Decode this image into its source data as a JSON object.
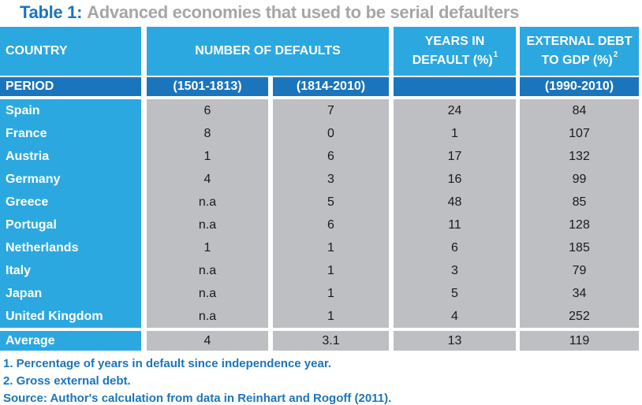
{
  "title": {
    "prefix": "Table 1:",
    "text": "Advanced economies that used to be serial defaulters"
  },
  "colors": {
    "light_blue": "#2BA8E0",
    "dark_blue": "#1B75BC",
    "cell_gray": "#BEBFC2",
    "title_gray": "#A6A6A6"
  },
  "header": {
    "country": "COUNTRY",
    "number_of_defaults": "NUMBER OF DEFAULTS",
    "years_in_default_line1": "YEARS IN",
    "years_in_default_line2": "DEFAULT (%)",
    "years_in_default_sup": "1",
    "external_debt_line1": "EXTERNAL DEBT",
    "external_debt_line2": "TO GDP (%)",
    "external_debt_sup": "2"
  },
  "period": {
    "label": "PERIOD",
    "defaults_early": "(1501-1813)",
    "defaults_late": "(1814-2010)",
    "years": "",
    "debt": "(1990-2010)"
  },
  "rows": [
    {
      "country": "Spain",
      "defaults_early": "6",
      "defaults_late": "7",
      "years_in_default": "24",
      "external_debt": "84"
    },
    {
      "country": "France",
      "defaults_early": "8",
      "defaults_late": "0",
      "years_in_default": "1",
      "external_debt": "107"
    },
    {
      "country": "Austria",
      "defaults_early": "1",
      "defaults_late": "6",
      "years_in_default": "17",
      "external_debt": "132"
    },
    {
      "country": "Germany",
      "defaults_early": "4",
      "defaults_late": "3",
      "years_in_default": "16",
      "external_debt": "99"
    },
    {
      "country": "Greece",
      "defaults_early": "n.a",
      "defaults_late": "5",
      "years_in_default": "48",
      "external_debt": "85"
    },
    {
      "country": "Portugal",
      "defaults_early": "n.a",
      "defaults_late": "6",
      "years_in_default": "11",
      "external_debt": "128"
    },
    {
      "country": "Netherlands",
      "defaults_early": "1",
      "defaults_late": "1",
      "years_in_default": "6",
      "external_debt": "185"
    },
    {
      "country": "Italy",
      "defaults_early": "n.a",
      "defaults_late": "1",
      "years_in_default": "3",
      "external_debt": "79"
    },
    {
      "country": "Japan",
      "defaults_early": "n.a",
      "defaults_late": "1",
      "years_in_default": "5",
      "external_debt": "34"
    },
    {
      "country": "United Kingdom",
      "defaults_early": "n.a",
      "defaults_late": "1",
      "years_in_default": "4",
      "external_debt": "252"
    }
  ],
  "average": {
    "label": "Average",
    "defaults_early": "4",
    "defaults_late": "3.1",
    "years_in_default": "13",
    "external_debt": "119"
  },
  "notes": {
    "note1": "1. Percentage of years in default since independence year.",
    "note2": "2. Gross external debt.",
    "source": "Source: Author's calculation from data in Reinhart and Rogoff (2011)."
  },
  "chart_data": {
    "type": "table",
    "title": "Table 1: Advanced economies that used to be serial defaulters",
    "columns": [
      "COUNTRY",
      "NUMBER OF DEFAULTS (1501-1813)",
      "NUMBER OF DEFAULTS (1814-2010)",
      "YEARS IN DEFAULT (%) (1)",
      "EXTERNAL DEBT TO GDP (%) (1990-2010) (2)"
    ],
    "rows": [
      [
        "Spain",
        "6",
        "7",
        "24",
        "84"
      ],
      [
        "France",
        "8",
        "0",
        "1",
        "107"
      ],
      [
        "Austria",
        "1",
        "6",
        "17",
        "132"
      ],
      [
        "Germany",
        "4",
        "3",
        "16",
        "99"
      ],
      [
        "Greece",
        "n.a",
        "5",
        "48",
        "85"
      ],
      [
        "Portugal",
        "n.a",
        "6",
        "11",
        "128"
      ],
      [
        "Netherlands",
        "1",
        "1",
        "6",
        "185"
      ],
      [
        "Italy",
        "n.a",
        "1",
        "3",
        "79"
      ],
      [
        "Japan",
        "n.a",
        "1",
        "5",
        "34"
      ],
      [
        "United Kingdom",
        "n.a",
        "1",
        "4",
        "252"
      ],
      [
        "Average",
        "4",
        "3.1",
        "13",
        "119"
      ]
    ]
  }
}
